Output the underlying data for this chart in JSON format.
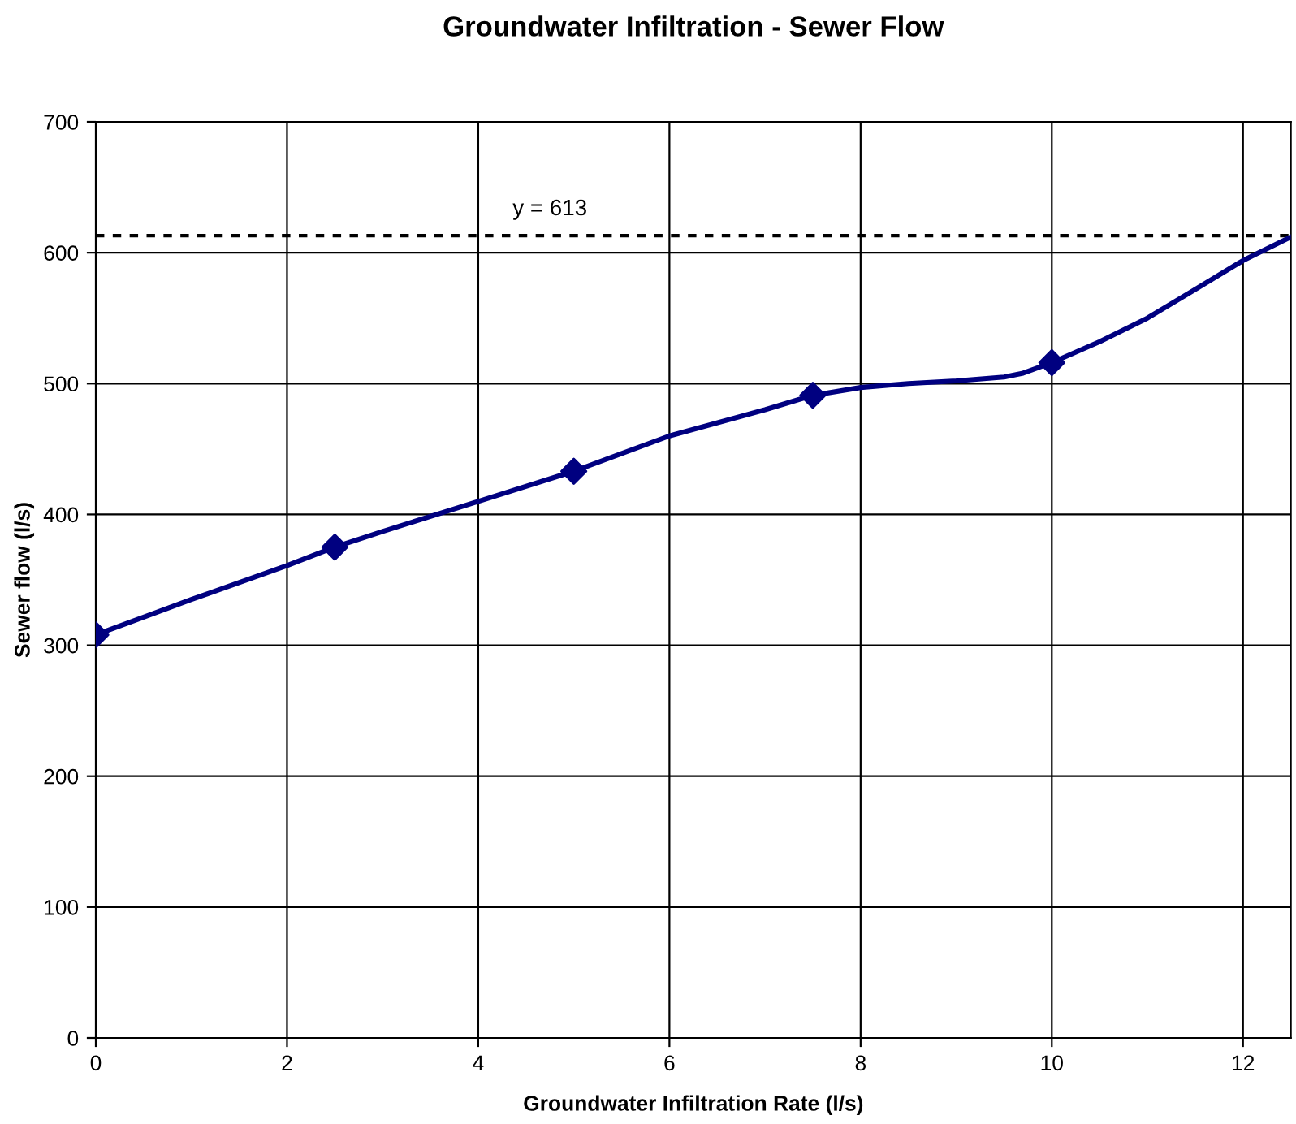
{
  "chart_data": {
    "type": "line",
    "title": "Groundwater Infiltration - Sewer Flow",
    "xlabel": "Groundwater Infiltration Rate (l/s)",
    "ylabel": "Sewer flow (l/s)",
    "series": [
      {
        "color": "#000080",
        "marker": "none",
        "x": [
          0,
          1,
          2,
          2.5,
          3,
          4,
          5,
          6,
          7,
          7.5,
          8,
          8.5,
          9,
          9.5,
          9.7,
          10,
          10.5,
          11,
          11.5,
          12,
          12.5
        ],
        "values": [
          308,
          335,
          361,
          375,
          387,
          410,
          433,
          460,
          480,
          491,
          497,
          500,
          502,
          505,
          508,
          516,
          532,
          550,
          572,
          594,
          612
        ]
      },
      {
        "type": "scatter",
        "color": "#000080",
        "marker": "diamond",
        "x": [
          0,
          2.5,
          5,
          7.5,
          10
        ],
        "values": [
          308,
          375,
          433,
          491,
          516
        ]
      }
    ],
    "ref_lines": [
      {
        "axis": "y",
        "value": 613,
        "label": "y = 613",
        "color": "#000000",
        "line_style": "dotted"
      }
    ],
    "xlim": [
      0,
      12.5
    ],
    "xticks": [
      0,
      2,
      4,
      6,
      8,
      10,
      12
    ],
    "ylim": [
      0,
      700
    ],
    "yticks": [
      0,
      100,
      200,
      300,
      400,
      500,
      600,
      700
    ],
    "grid": true,
    "legend": false
  }
}
